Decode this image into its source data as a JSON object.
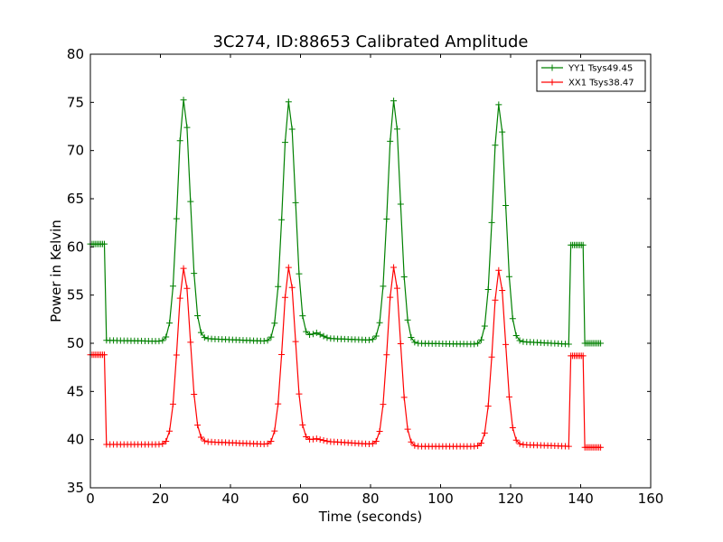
{
  "chart_data": {
    "type": "line",
    "title": "3C274, ID:88653 Calibrated Amplitude",
    "xlabel": "Time (seconds)",
    "ylabel": "Power in Kelvin",
    "xlim": [
      0,
      160
    ],
    "ylim": [
      35,
      80
    ],
    "xticks": [
      0,
      20,
      40,
      60,
      80,
      100,
      120,
      140,
      160
    ],
    "yticks": [
      35,
      40,
      45,
      50,
      55,
      60,
      65,
      70,
      75,
      80
    ],
    "grid": false,
    "legend_position": "top-right",
    "series": [
      {
        "name": "YY1 Tsys49.45",
        "color": "#008000",
        "marker": "+",
        "baseline": [
          [
            4.5,
            50.3
          ],
          [
            21.5,
            50.2
          ],
          [
            31.5,
            50.5
          ],
          [
            51.5,
            50.2
          ],
          [
            61.0,
            50.5
          ],
          [
            64.5,
            51.1
          ],
          [
            68.0,
            50.5
          ],
          [
            81.5,
            50.3
          ],
          [
            91.0,
            50.0
          ],
          [
            111.5,
            49.9
          ],
          [
            121.0,
            50.2
          ],
          [
            137.0,
            49.9
          ]
        ],
        "peaks": [
          {
            "center": 26.7,
            "height": 75.3,
            "width": 1.8
          },
          {
            "center": 56.7,
            "height": 75.1,
            "width": 1.8
          },
          {
            "center": 86.7,
            "height": 75.2,
            "width": 1.8
          },
          {
            "center": 116.7,
            "height": 74.8,
            "width": 1.8
          }
        ],
        "plateaus": [
          [
            0,
            4.4,
            60.3
          ],
          [
            137.2,
            141.0,
            60.2
          ]
        ],
        "tail": [
          141.2,
          146.0,
          50.0
        ]
      },
      {
        "name": "XX1 Tsys38.47",
        "color": "#ff0000",
        "marker": "+",
        "baseline": [
          [
            4.5,
            39.5
          ],
          [
            21.5,
            39.5
          ],
          [
            31.5,
            39.8
          ],
          [
            51.5,
            39.5
          ],
          [
            61.0,
            39.8
          ],
          [
            64.5,
            40.1
          ],
          [
            68.0,
            39.8
          ],
          [
            81.5,
            39.5
          ],
          [
            91.0,
            39.3
          ],
          [
            111.5,
            39.3
          ],
          [
            121.0,
            39.5
          ],
          [
            137.0,
            39.3
          ]
        ],
        "peaks": [
          {
            "center": 26.7,
            "height": 57.8,
            "width": 1.8
          },
          {
            "center": 56.7,
            "height": 57.9,
            "width": 1.8
          },
          {
            "center": 86.7,
            "height": 57.9,
            "width": 1.8
          },
          {
            "center": 116.7,
            "height": 57.6,
            "width": 1.8
          }
        ],
        "plateaus": [
          [
            0,
            4.4,
            48.8
          ],
          [
            137.2,
            141.0,
            48.7
          ]
        ],
        "tail": [
          141.2,
          146.0,
          39.2
        ]
      }
    ]
  }
}
